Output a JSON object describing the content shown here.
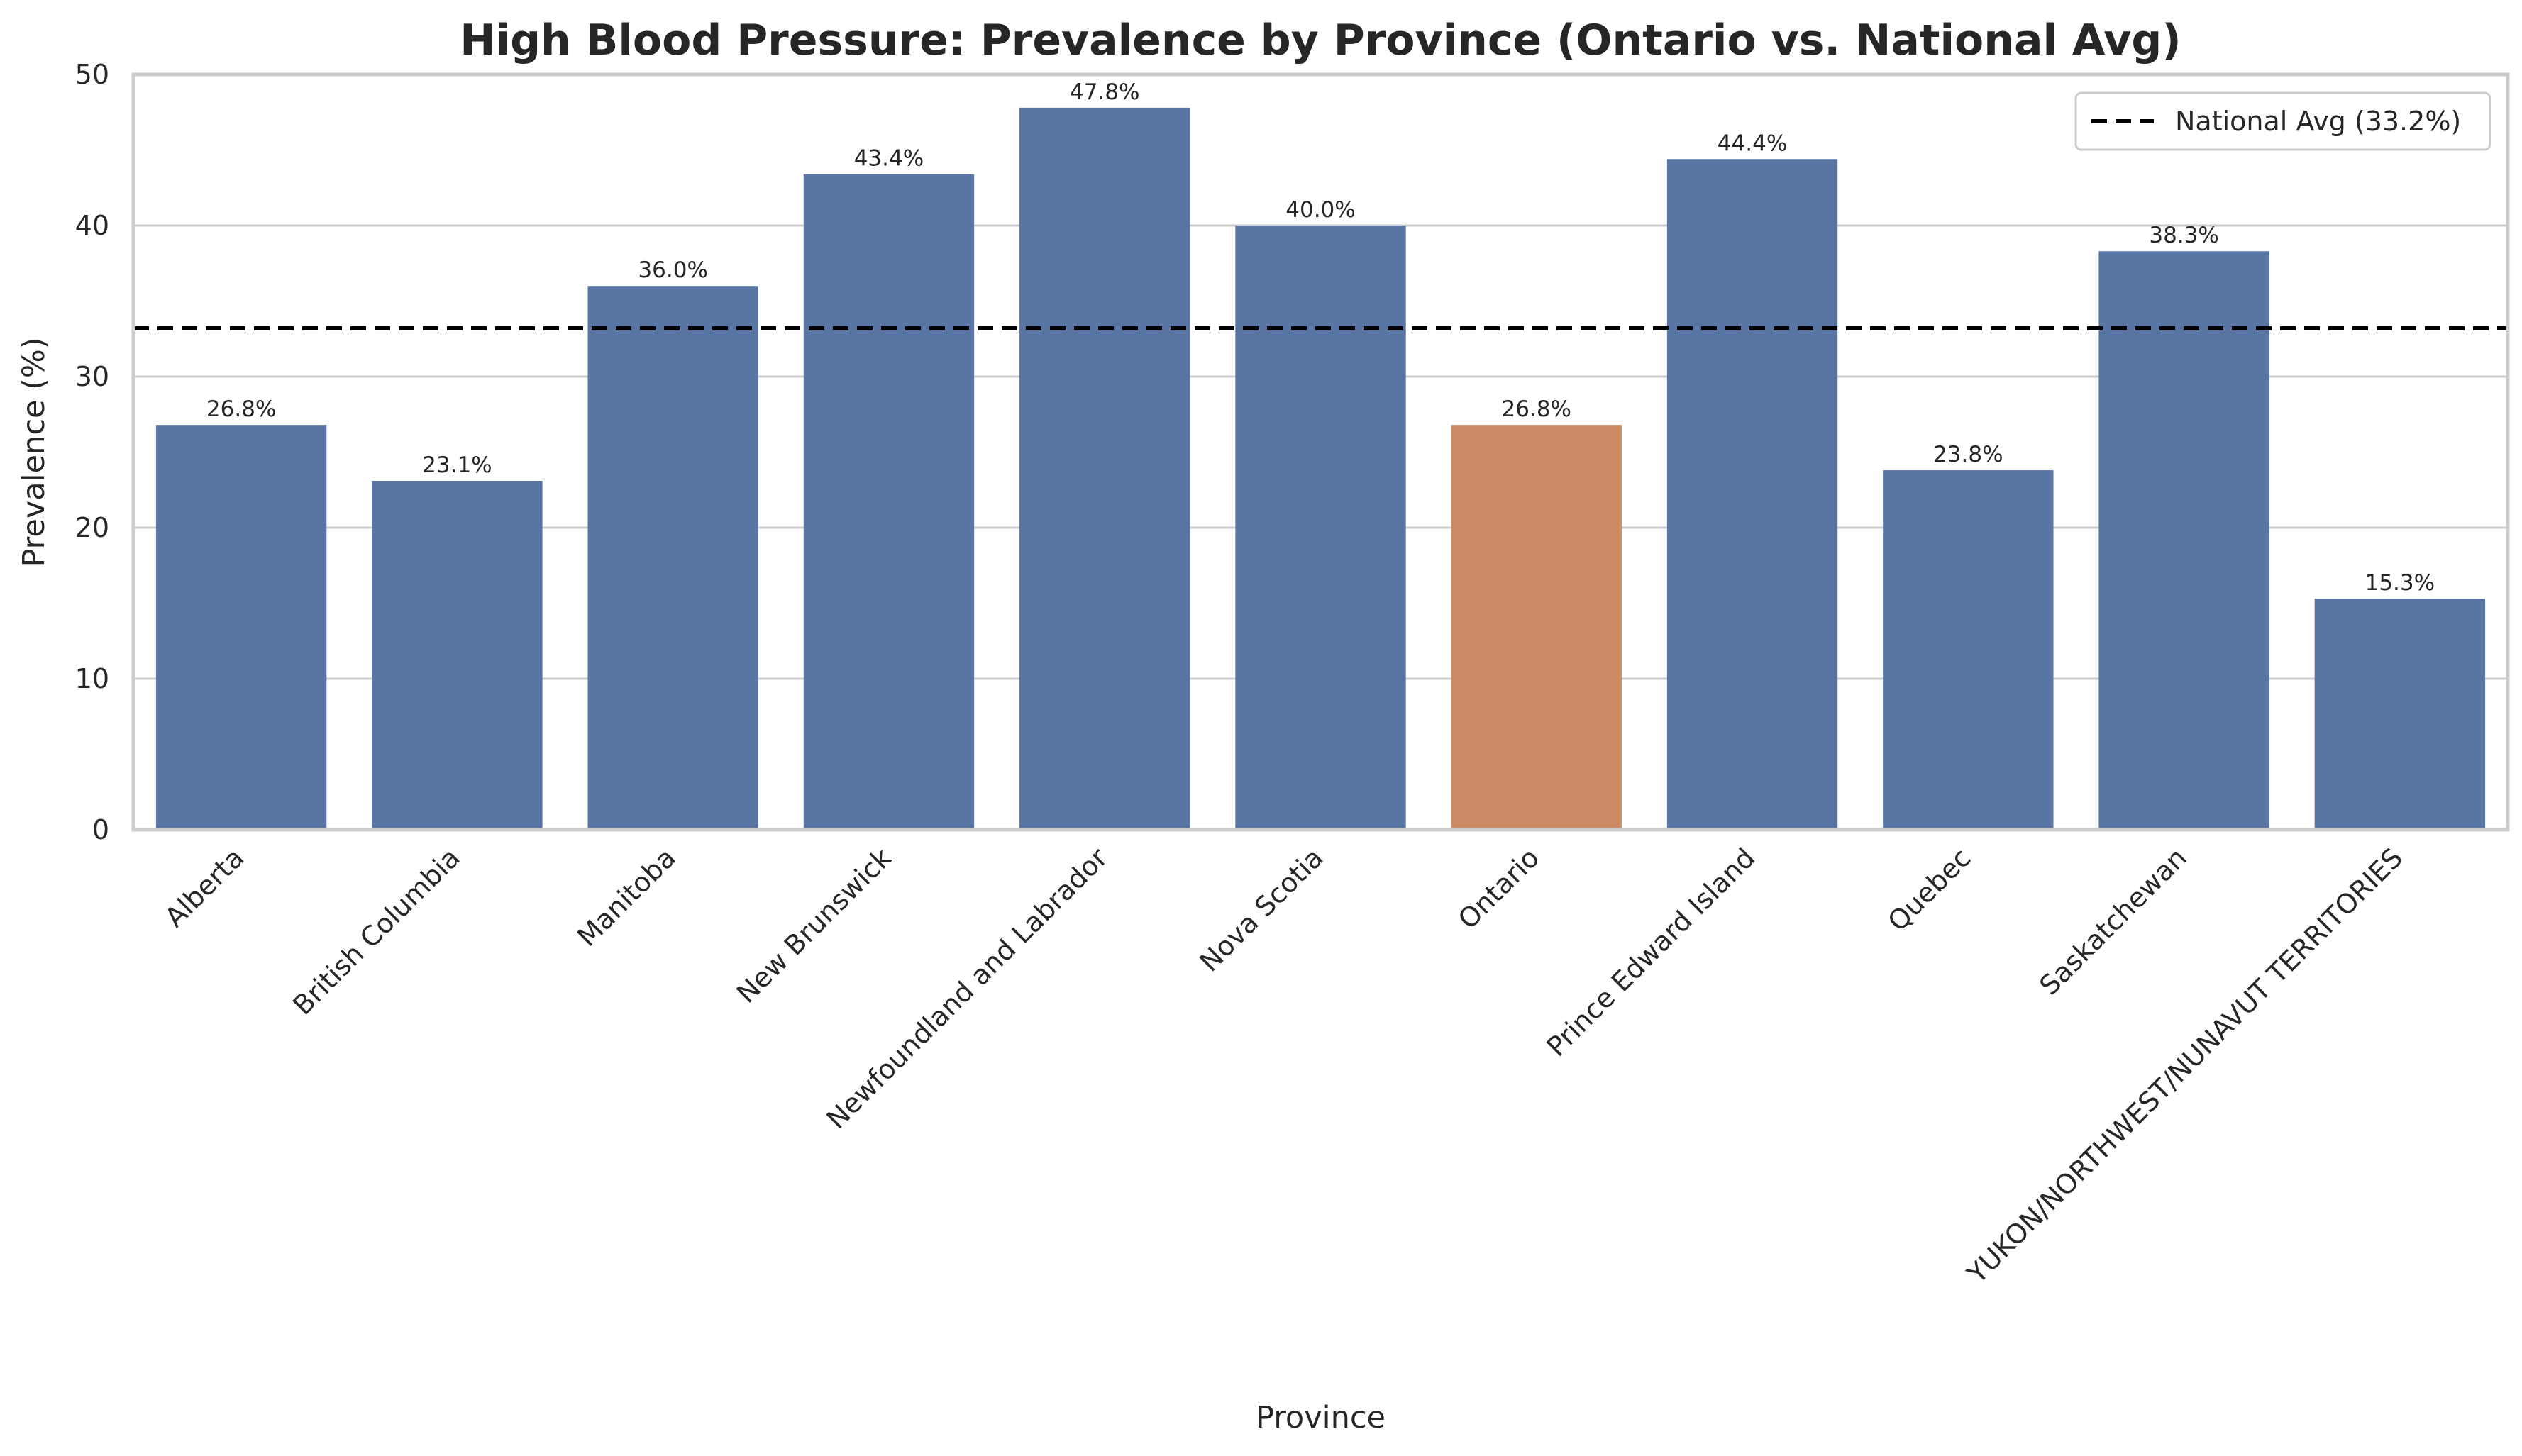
{
  "chart_data": {
    "type": "bar",
    "title": "High Blood Pressure: Prevalence by Province (Ontario vs. National Avg)",
    "xlabel": "Province",
    "ylabel": "Prevalence (%)",
    "ylim": [
      0,
      50
    ],
    "yticks": [
      0,
      10,
      20,
      30,
      40,
      50
    ],
    "grid": "horizontal",
    "legend_placement": "top-right",
    "categories": [
      "Alberta",
      "British Columbia",
      "Manitoba",
      "New Brunswick",
      "Newfoundland and Labrador",
      "Nova Scotia",
      "Ontario",
      "Prince Edward Island",
      "Quebec",
      "Saskatchewan",
      "YUKON/NORTHWEST/NUNAVUT TERRITORIES"
    ],
    "values": [
      26.8,
      23.1,
      36.0,
      43.4,
      47.8,
      40.0,
      26.8,
      44.4,
      23.8,
      38.3,
      15.3
    ],
    "data_labels": [
      "26.8%",
      "23.1%",
      "36.0%",
      "43.4%",
      "47.8%",
      "40.0%",
      "26.8%",
      "44.4%",
      "23.8%",
      "38.3%",
      "15.3%"
    ],
    "highlight_category": "Ontario",
    "colors": {
      "bar": "#5975a4",
      "highlight": "#cc8963",
      "reference_line": "#000000",
      "grid": "#cccccc",
      "frame": "#cccccc"
    },
    "reference_line": {
      "value": 33.2,
      "style": "dashed",
      "label": "National Avg (33.2%)"
    }
  }
}
